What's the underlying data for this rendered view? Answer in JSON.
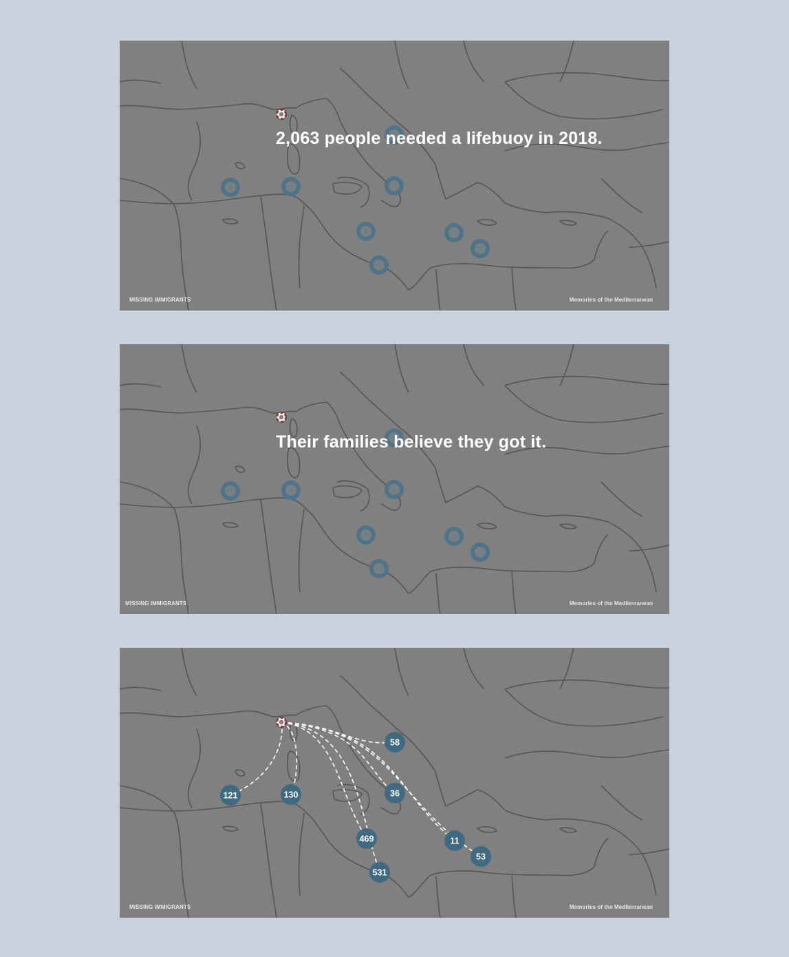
{
  "panels": [
    {
      "caption": "2,063 people needed a lifebuoy in 2018.",
      "footer_left": "MISSING IMMIGRANTS",
      "footer_right": "Memories of the Mediterranean"
    },
    {
      "caption": "Their families believe they got it.",
      "footer_left": "MISSING IMMIGRANTS",
      "footer_right": "Memories of the Mediterranean"
    },
    {
      "caption": "",
      "footer_left": "MISSING IMMIGRANTS",
      "footer_right": "Memories of the Mediterranean"
    }
  ],
  "origin_marker": "lifebuoy-icon",
  "route_counts": [
    {
      "value": 58
    },
    {
      "value": 121
    },
    {
      "value": 130
    },
    {
      "value": 36
    },
    {
      "value": 469
    },
    {
      "value": 11
    },
    {
      "value": 53
    },
    {
      "value": 531
    }
  ],
  "colors": {
    "page_background": "#c9d1dc",
    "sea_land": "#808080",
    "borders": "#555555",
    "bubble": "#3f6a82",
    "bubble_ring": "#4f7388",
    "route_line": "#ffffff",
    "lifebuoy_red": "#c0392b"
  }
}
